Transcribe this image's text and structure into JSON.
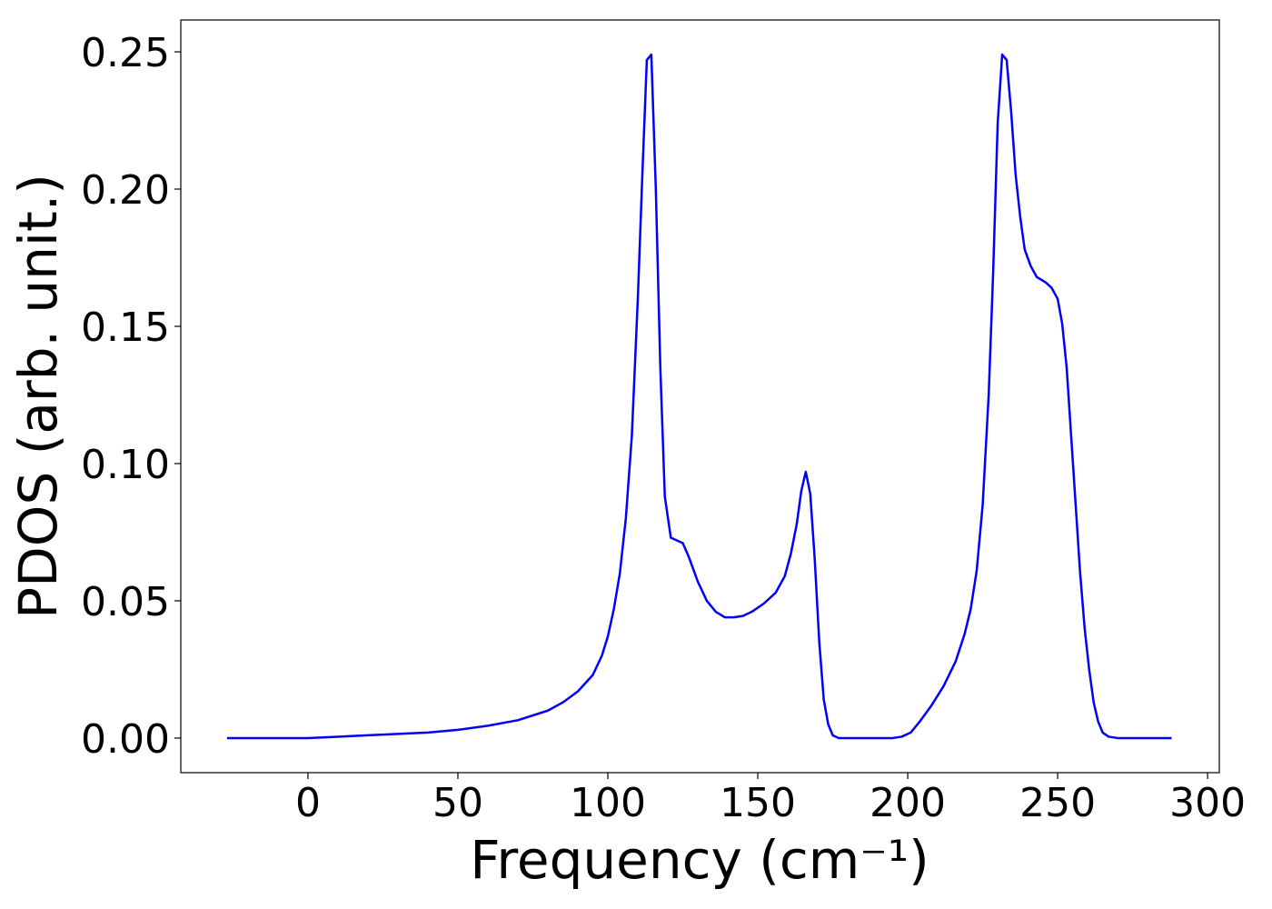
{
  "chart_data": {
    "type": "line",
    "xlabel": "Frequency (cm⁻¹)",
    "ylabel": "PDOS (arb. unit.)",
    "xlim": [
      -42.4,
      303.9
    ],
    "ylim": [
      -0.0126,
      0.2616
    ],
    "xticks": [
      0,
      50,
      100,
      150,
      200,
      250,
      300
    ],
    "yticks": [
      {
        "value": 0,
        "label": "0.00"
      },
      {
        "value": 0.05,
        "label": "0.05"
      },
      {
        "value": 0.1,
        "label": "0.10"
      },
      {
        "value": 0.15,
        "label": "0.15"
      },
      {
        "value": 0.2,
        "label": "0.20"
      },
      {
        "value": 0.25,
        "label": "0.25"
      }
    ],
    "grid": false,
    "x": [
      -27,
      0,
      10,
      20,
      30,
      40,
      50,
      60,
      70,
      80,
      85,
      90,
      95,
      98,
      100,
      102,
      104,
      106,
      108,
      110,
      111.5,
      113,
      114.5,
      116,
      117.5,
      119,
      121,
      123,
      125,
      127,
      130,
      133,
      136,
      139,
      142,
      145,
      148,
      152,
      156,
      159,
      161,
      163,
      164.5,
      166,
      167.5,
      169,
      170.5,
      172,
      173.5,
      175,
      177,
      195,
      198,
      201,
      204,
      208,
      212,
      216,
      219,
      221,
      223,
      225,
      227,
      228.5,
      230,
      231.5,
      233,
      234.5,
      236,
      237.5,
      239,
      241,
      243,
      246,
      248,
      250,
      251.5,
      253,
      254.5,
      256,
      257.5,
      259,
      260.5,
      262,
      263.5,
      265,
      267,
      270,
      288
    ],
    "series": [
      {
        "color": "#0000ff",
        "values": [
          0,
          0,
          0.0005,
          0.001,
          0.0015,
          0.002,
          0.003,
          0.0045,
          0.0065,
          0.01,
          0.013,
          0.017,
          0.023,
          0.03,
          0.037,
          0.047,
          0.06,
          0.08,
          0.11,
          0.16,
          0.205,
          0.247,
          0.249,
          0.2,
          0.135,
          0.088,
          0.073,
          0.072,
          0.071,
          0.066,
          0.057,
          0.05,
          0.046,
          0.044,
          0.044,
          0.0445,
          0.046,
          0.049,
          0.053,
          0.059,
          0.067,
          0.078,
          0.09,
          0.097,
          0.089,
          0.065,
          0.035,
          0.014,
          0.005,
          0.001,
          0,
          0,
          0.0005,
          0.002,
          0.006,
          0.012,
          0.019,
          0.028,
          0.038,
          0.047,
          0.061,
          0.085,
          0.125,
          0.17,
          0.224,
          0.249,
          0.247,
          0.228,
          0.205,
          0.19,
          0.178,
          0.172,
          0.168,
          0.166,
          0.164,
          0.16,
          0.151,
          0.135,
          0.11,
          0.085,
          0.06,
          0.04,
          0.025,
          0.013,
          0.006,
          0.002,
          0.0005,
          0,
          0
        ]
      }
    ]
  }
}
